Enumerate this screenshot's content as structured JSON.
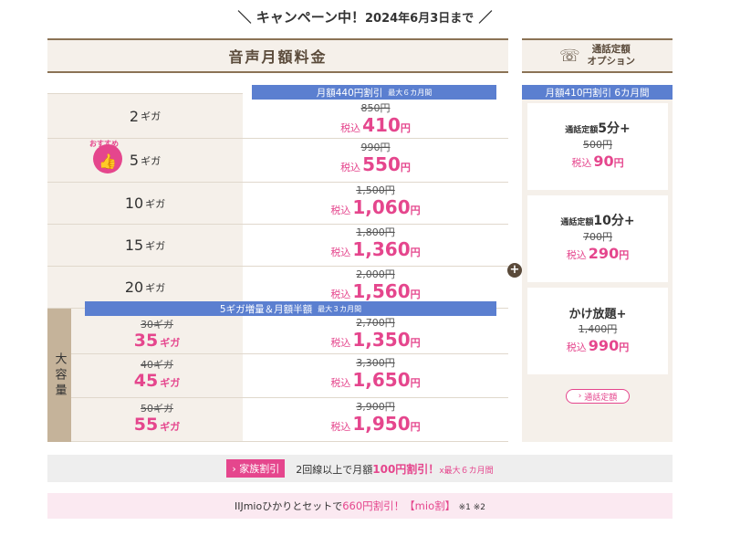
{
  "campaign": {
    "title": "キャンペーン中！",
    "date": "2024年6月3日まで",
    "slash_left": "＼",
    "slash_right": "／"
  },
  "voice_plan": {
    "header": "音声月額料金"
  },
  "discount_banner": {
    "text": "月額440円割引",
    "note": "最大６カ月間"
  },
  "recommend_badge": "おすすめ",
  "plans": [
    {
      "gb": "2",
      "unit": "ギガ",
      "old_price": "850円",
      "tax_label": "税込",
      "new_price": "410",
      "yen": "円"
    },
    {
      "gb": "5",
      "unit": "ギガ",
      "old_price": "990円",
      "tax_label": "税込",
      "new_price": "550",
      "yen": "円"
    },
    {
      "gb": "10",
      "unit": "ギガ",
      "old_price": "1,500円",
      "tax_label": "税込",
      "new_price": "1,060",
      "yen": "円"
    },
    {
      "gb": "15",
      "unit": "ギガ",
      "old_price": "1,800円",
      "tax_label": "税込",
      "new_price": "1,360",
      "yen": "円"
    },
    {
      "gb": "20",
      "unit": "ギガ",
      "old_price": "2,000円",
      "tax_label": "税込",
      "new_price": "1,560",
      "yen": "円"
    }
  ],
  "large_banner": {
    "text": "5ギガ増量＆月額半額",
    "note": "最大３カ月間"
  },
  "large_label": "大容量",
  "large_plans": [
    {
      "old_gb": "30ギガ",
      "new_gb": "35",
      "unit": "ギガ",
      "old_price": "2,700円",
      "tax_label": "税込",
      "new_price": "1,350",
      "yen": "円"
    },
    {
      "old_gb": "40ギガ",
      "new_gb": "45",
      "unit": "ギガ",
      "old_price": "3,300円",
      "tax_label": "税込",
      "new_price": "1,650",
      "yen": "円"
    },
    {
      "old_gb": "50ギガ",
      "new_gb": "55",
      "unit": "ギガ",
      "old_price": "3,900円",
      "tax_label": "税込",
      "new_price": "1,950",
      "yen": "円"
    }
  ],
  "plus_sign": "+",
  "call_option": {
    "header_line1": "通話定額",
    "header_line2": "オプション",
    "banner": "月額410円割引 6カ月間",
    "cards": [
      {
        "prefix": "通話定額",
        "name": "5分+",
        "old_price": "500円",
        "tax_label": "税込",
        "new_price": "90",
        "yen": "円"
      },
      {
        "prefix": "通話定額",
        "name": "10分+",
        "old_price": "700円",
        "tax_label": "税込",
        "new_price": "290",
        "yen": "円"
      },
      {
        "prefix": "",
        "name": "かけ放題+",
        "old_price": "1,400円",
        "tax_label": "税込",
        "new_price": "990",
        "yen": "円"
      }
    ],
    "link_label": "通話定額"
  },
  "family": {
    "badge": "家族割引",
    "text_pre": "2回線以上で月額",
    "text_amount": "100円割引！",
    "text_note": "x最大６カ月間"
  },
  "mio": {
    "text_pre": "IIJmioひかりとセットで",
    "text_amount": "660円割引！【mio割】",
    "text_note": "※1 ※2"
  },
  "colors": {
    "accent": "#e5468d",
    "banner_blue": "#5b7fd0",
    "beige": "#f5f0ea",
    "brown": "#8b7355"
  }
}
